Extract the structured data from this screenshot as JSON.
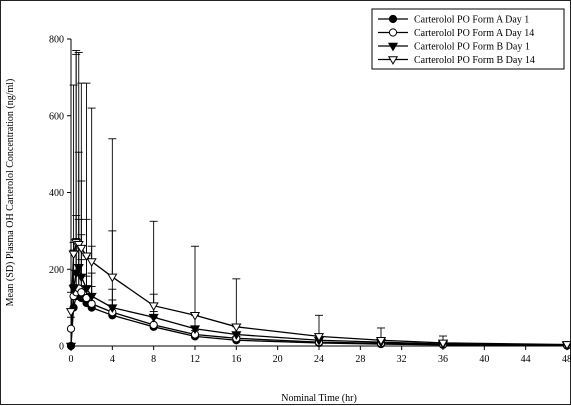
{
  "chart_data": {
    "type": "line",
    "xlabel": "Nominal Time (hr)",
    "ylabel": "Mean (SD) Plasma OH Carterolol Concentration (ng/ml)",
    "xlim": [
      0,
      48
    ],
    "ylim": [
      0,
      800
    ],
    "x_ticks": [
      0,
      4,
      8,
      12,
      16,
      20,
      24,
      28,
      32,
      36,
      40,
      44,
      48
    ],
    "y_ticks": [
      0,
      200,
      400,
      600,
      800
    ],
    "grid": false,
    "legend_position": "top-right",
    "x": [
      0,
      0.25,
      0.5,
      0.75,
      1,
      1.5,
      2,
      4,
      8,
      12,
      16,
      24,
      30,
      36,
      48
    ],
    "series": [
      {
        "name": "Carterolol PO Form A  Day 1",
        "marker": "filled-circle",
        "values": [
          0,
          100,
          130,
          135,
          125,
          112,
          100,
          80,
          50,
          25,
          15,
          8,
          5,
          3,
          1
        ],
        "sd": [
          0,
          60,
          150,
          120,
          100,
          70,
          55,
          40,
          25,
          15,
          10,
          5,
          3,
          2,
          1
        ]
      },
      {
        "name": "Carterolol PO Form A  Day 14",
        "marker": "open-circle",
        "values": [
          45,
          130,
          140,
          150,
          140,
          125,
          110,
          88,
          55,
          30,
          20,
          10,
          7,
          4,
          2
        ],
        "sd": [
          30,
          120,
          200,
          180,
          150,
          110,
          80,
          60,
          35,
          20,
          12,
          6,
          4,
          3,
          2
        ]
      },
      {
        "name": "Carterolol PO Form B  Day 1",
        "marker": "filled-triangle-down",
        "values": [
          0,
          150,
          190,
          205,
          180,
          150,
          130,
          100,
          75,
          45,
          30,
          15,
          10,
          5,
          2
        ],
        "sd": [
          0,
          120,
          570,
          300,
          250,
          180,
          130,
          200,
          60,
          35,
          20,
          10,
          6,
          4,
          2
        ]
      },
      {
        "name": "Carterolol PO Form B  Day 14",
        "marker": "open-triangle-down",
        "values": [
          90,
          240,
          270,
          265,
          255,
          235,
          220,
          180,
          105,
          80,
          50,
          25,
          15,
          8,
          4
        ],
        "sd": [
          50,
          440,
          500,
          500,
          430,
          450,
          400,
          360,
          220,
          180,
          125,
          55,
          32,
          18,
          6
        ]
      }
    ]
  }
}
